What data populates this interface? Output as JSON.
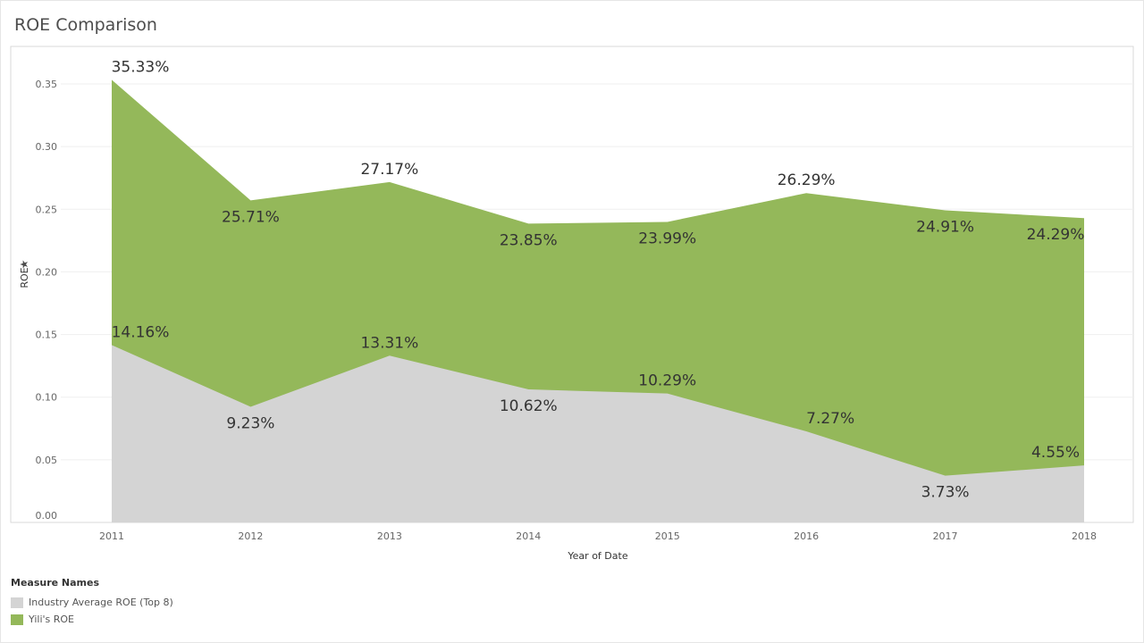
{
  "title": "ROE Comparison",
  "chart_data": {
    "type": "area",
    "title": "ROE Comparison",
    "xlabel": "Year of Date",
    "ylabel": "ROE",
    "categories": [
      "2011",
      "2012",
      "2013",
      "2014",
      "2015",
      "2016",
      "2017",
      "2018"
    ],
    "y_ticks": [
      "0.00",
      "0.05",
      "0.10",
      "0.15",
      "0.20",
      "0.25",
      "0.30",
      "0.35"
    ],
    "ylim": [
      0,
      0.36
    ],
    "stacked": false,
    "grid": true,
    "legend_position": "bottom-left",
    "series": [
      {
        "name": "Industry Average ROE (Top 8)",
        "color": "#d4d4d4",
        "values": [
          0.1416,
          0.0923,
          0.1331,
          0.1062,
          0.1029,
          0.0727,
          0.0373,
          0.0455
        ],
        "labels": [
          "14.16%",
          "9.23%",
          "13.31%",
          "10.62%",
          "10.29%",
          "7.27%",
          "3.73%",
          "4.55%"
        ]
      },
      {
        "name": "Yili's ROE",
        "color": "#94b85a",
        "values": [
          0.3533,
          0.2571,
          0.2717,
          0.2385,
          0.2399,
          0.2629,
          0.2491,
          0.2429
        ],
        "labels": [
          "35.33%",
          "25.71%",
          "27.17%",
          "23.85%",
          "23.99%",
          "26.29%",
          "24.91%",
          "24.29%"
        ]
      }
    ]
  },
  "legend": {
    "title": "Measure Names",
    "items": [
      {
        "label": "Industry Average ROE (Top 8)",
        "color": "#d4d4d4"
      },
      {
        "label": "Yili's ROE",
        "color": "#94b85a"
      }
    ]
  }
}
